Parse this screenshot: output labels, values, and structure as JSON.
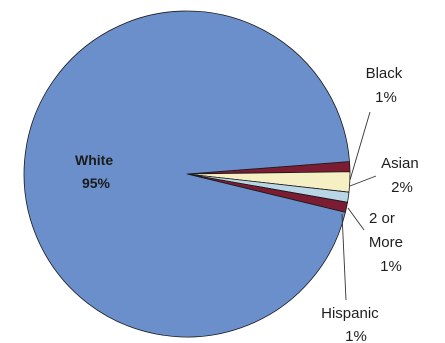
{
  "chart_data": {
    "type": "pie",
    "title": "",
    "slices": [
      {
        "label": "White",
        "value": 95,
        "value_label": "95%",
        "color": "#6a8fcb"
      },
      {
        "label": "Black",
        "value": 1,
        "value_label": "1%",
        "color": "#7b1c33"
      },
      {
        "label": "Asian",
        "value": 2,
        "value_label": "2%",
        "color": "#f6efc4"
      },
      {
        "label": "2 or More",
        "value": 1,
        "value_label": "1%",
        "color": "#b8d6e6"
      },
      {
        "label": "Hispanic",
        "value": 1,
        "value_label": "1%",
        "color": "#7b1c33"
      }
    ],
    "label_lines": {
      "White": [
        "White",
        "95%"
      ],
      "Black": [
        "Black",
        "1%"
      ],
      "Asian": [
        "Asian",
        "2%"
      ],
      "2 or More": [
        "2 or",
        "More",
        "1%"
      ],
      "Hispanic": [
        "Hispanic",
        "1%"
      ]
    },
    "legend": "none"
  }
}
